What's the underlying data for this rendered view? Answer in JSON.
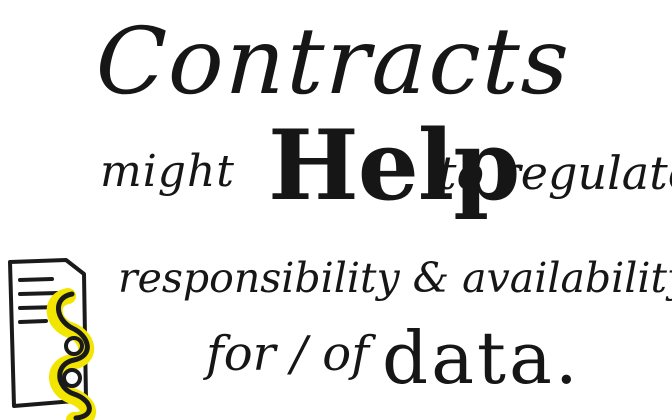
{
  "sketchnote": {
    "title": "Contracts",
    "line2": {
      "word1": "might",
      "word2": "Help",
      "word3": "to regulate"
    },
    "line3": "responsibility & availability",
    "line4": {
      "word1": "for / of",
      "word2": "data."
    }
  },
  "icon": {
    "name": "contract-document-with-paragraph-sign",
    "paragraph_color": "#f2e500"
  }
}
